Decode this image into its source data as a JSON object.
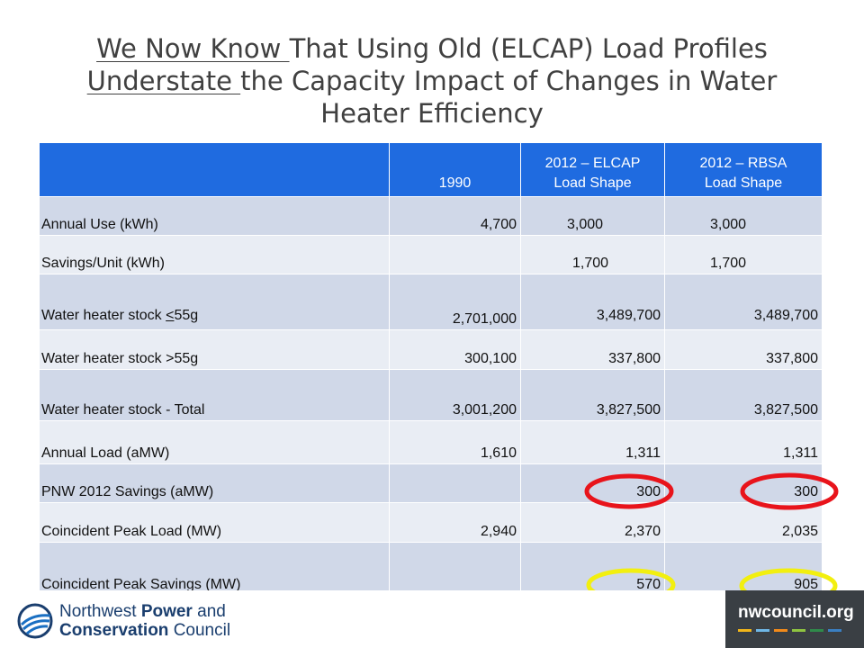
{
  "title": {
    "line1_underlined": "We Now Know ",
    "line1_rest": "That Using Old (ELCAP) Load Profiles",
    "line2_underlined": "Understate ",
    "line2_rest": "the Capacity Impact of Changes in Water",
    "line3": "Heater Efficiency"
  },
  "table": {
    "headers": [
      "",
      "1990",
      "2012 – ELCAP\nLoad Shape",
      "2012 – RBSA\nLoad Shape"
    ],
    "rows": [
      {
        "label": "Annual Use (kWh)",
        "v1990": "4,700",
        "elcap": "3,000",
        "rbsa": "3,000"
      },
      {
        "label": "Savings/Unit (kWh)",
        "v1990": "",
        "elcap": "1,700",
        "rbsa": "1,700"
      },
      {
        "label_pre": "Water heater stock ",
        "label_u": "<",
        "label_post": "55g",
        "v1990": "2,701,000",
        "elcap": "3,489,700",
        "rbsa": "3,489,700"
      },
      {
        "label": "Water heater stock >55g",
        "v1990": "300,100",
        "elcap": "337,800",
        "rbsa": "337,800"
      },
      {
        "label": "Water heater stock - Total",
        "v1990": "3,001,200",
        "elcap": "3,827,500",
        "rbsa": "3,827,500"
      },
      {
        "label": "Annual Load (aMW)",
        "v1990": "1,610",
        "elcap": "1,311",
        "rbsa": "1,311"
      },
      {
        "label": "PNW 2012 Savings (aMW)",
        "v1990": "",
        "elcap": "300",
        "rbsa": "300"
      },
      {
        "label": "Coincident Peak Load (MW)",
        "v1990": "2,940",
        "elcap": "2,370",
        "rbsa": "2,035"
      },
      {
        "label": "Coincident Peak Savings (MW)",
        "v1990": "",
        "elcap": "570",
        "rbsa": "905"
      }
    ]
  },
  "footer": {
    "org_line1_a": "Northwest ",
    "org_line1_b": "Power",
    "org_line1_c": " and",
    "org_line2_a": "Conservation",
    "org_line2_b": " Council",
    "website": "nwcouncil.org"
  },
  "colors": {
    "header_blue": "#1f6be0",
    "row_dark": "#d0d8e8",
    "row_light": "#e9edf4",
    "red_oval": "#e8141b",
    "yellow_oval": "#f2ef0f",
    "brand_gray": "#3a3f44"
  }
}
